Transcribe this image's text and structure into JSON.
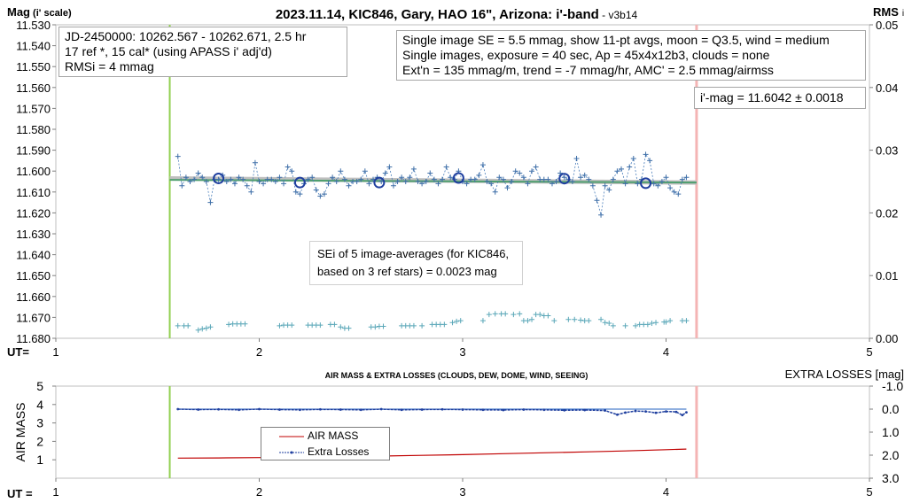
{
  "chart_data": [
    {
      "type": "scatter",
      "title_main": "2023.11.14, KIC846, Gary, HAO 16\", Arizona: i'-band",
      "title_version": " - v3b14",
      "ylabel_main": "Mag",
      "ylabel_sub": "(i' scale)",
      "y2label_main": "RMS",
      "y2label_sub": "i",
      "xlabel": "UT=",
      "xlim": [
        1,
        5
      ],
      "ylim": [
        11.68,
        11.53
      ],
      "y2lim": [
        0,
        0.05
      ],
      "y_ticks": [
        "11.530",
        "11.540",
        "11.550",
        "11.560",
        "11.570",
        "11.580",
        "11.590",
        "11.600",
        "11.610",
        "11.620",
        "11.630",
        "11.640",
        "11.650",
        "11.660",
        "11.670",
        "11.680"
      ],
      "y2_ticks": [
        "0.05",
        "0.04",
        "0.03",
        "0.02",
        "0.01",
        "0.00"
      ],
      "x_ticks": [
        "1",
        "2",
        "3",
        "4",
        "5"
      ],
      "vlines": {
        "start": 1.56,
        "end": 4.15
      },
      "info_box_left": [
        "JD-2450000: 10262.567 - 10262.671, 2.5  hr",
        "17 ref *, 15 cal* (using APASS i' adj'd)",
        "RMSi = 4 mmag"
      ],
      "info_box_right": [
        "Single image SE = 5.5 mmag, show 11-pt avgs, moon = Q3.5, wind = medium",
        "Single images, exposure = 40 sec, Ap = 45x4x12b3, clouds = none",
        "Ext'n = 135 mmag/m, trend = -7 mmag/hr, AMC' = 2.5 mmag/airmss"
      ],
      "mag_result": "i'-mag = 11.6042 ± 0.0018",
      "sei_note": [
        "SEi of 5 image-averages (for KIC846,",
        "based on 3 ref stars) = 0.0023 mag"
      ],
      "series": [
        {
          "name": "single images",
          "x": [
            1.6,
            1.62,
            1.64,
            1.66,
            1.68,
            1.7,
            1.72,
            1.74,
            1.76,
            1.78,
            1.8,
            1.82,
            1.84,
            1.86,
            1.88,
            1.9,
            1.92,
            1.94,
            1.96,
            1.98,
            2.0,
            2.02,
            2.04,
            2.06,
            2.08,
            2.1,
            2.12,
            2.14,
            2.16,
            2.18,
            2.2,
            2.22,
            2.24,
            2.26,
            2.28,
            2.3,
            2.32,
            2.34,
            2.36,
            2.38,
            2.4,
            2.42,
            2.44,
            2.46,
            2.48,
            2.5,
            2.52,
            2.54,
            2.56,
            2.58,
            2.6,
            2.62,
            2.64,
            2.66,
            2.68,
            2.7,
            2.72,
            2.74,
            2.76,
            2.78,
            2.8,
            2.82,
            2.84,
            2.86,
            2.88,
            2.9,
            2.92,
            2.94,
            2.96,
            2.98,
            3.0,
            3.02,
            3.04,
            3.06,
            3.08,
            3.1,
            3.12,
            3.14,
            3.16,
            3.18,
            3.2,
            3.22,
            3.24,
            3.26,
            3.28,
            3.3,
            3.32,
            3.34,
            3.36,
            3.38,
            3.4,
            3.42,
            3.44,
            3.46,
            3.48,
            3.5,
            3.52,
            3.54,
            3.56,
            3.58,
            3.6,
            3.62,
            3.64,
            3.66,
            3.68,
            3.7,
            3.72,
            3.74,
            3.76,
            3.78,
            3.8,
            3.82,
            3.84,
            3.86,
            3.88,
            3.9,
            3.92,
            3.94,
            3.96,
            3.98,
            4.0,
            4.02,
            4.04,
            4.06,
            4.08,
            4.1
          ],
          "values": [
            11.593,
            11.607,
            11.603,
            11.605,
            11.604,
            11.601,
            11.603,
            11.605,
            11.615,
            11.604,
            11.604,
            11.602,
            11.605,
            11.604,
            11.606,
            11.603,
            11.604,
            11.607,
            11.61,
            11.596,
            11.605,
            11.606,
            11.604,
            11.604,
            11.605,
            11.603,
            11.606,
            11.598,
            11.6,
            11.61,
            11.611,
            11.606,
            11.604,
            11.603,
            11.609,
            11.612,
            11.611,
            11.606,
            11.603,
            11.605,
            11.6,
            11.604,
            11.607,
            11.605,
            11.605,
            11.604,
            11.6,
            11.606,
            11.604,
            11.603,
            11.605,
            11.601,
            11.598,
            11.607,
            11.605,
            11.603,
            11.605,
            11.603,
            11.599,
            11.605,
            11.606,
            11.605,
            11.601,
            11.604,
            11.606,
            11.604,
            11.598,
            11.603,
            11.604,
            11.6,
            11.605,
            11.606,
            11.604,
            11.604,
            11.602,
            11.597,
            11.605,
            11.606,
            11.61,
            11.603,
            11.604,
            11.608,
            11.605,
            11.6,
            11.601,
            11.603,
            11.606,
            11.6,
            11.598,
            11.604,
            11.604,
            11.604,
            11.606,
            11.605,
            11.601,
            11.603,
            11.604,
            11.605,
            11.594,
            11.603,
            11.602,
            11.604,
            11.607,
            11.614,
            11.621,
            11.607,
            11.609,
            11.604,
            11.6,
            11.599,
            11.606,
            11.598,
            11.594,
            11.606,
            11.604,
            11.592,
            11.595,
            11.606,
            11.607,
            11.605,
            11.603,
            11.608,
            11.61,
            11.611,
            11.604,
            11.603
          ]
        },
        {
          "name": "11-pt averages",
          "x": [
            1.8,
            2.2,
            2.59,
            2.98,
            3.5,
            3.9
          ],
          "values": [
            11.6035,
            11.6055,
            11.6055,
            11.6033,
            11.6036,
            11.6058
          ]
        },
        {
          "name": "trend",
          "x": [
            1.56,
            4.15
          ],
          "values": [
            11.6035,
            11.6055
          ]
        },
        {
          "name": "fit",
          "x": [
            1.56,
            4.15
          ],
          "values": [
            11.6042,
            11.6055
          ]
        },
        {
          "name": "RMS",
          "axis": "y2",
          "x": [
            1.6,
            1.63,
            1.65,
            1.7,
            1.72,
            1.74,
            1.76,
            1.85,
            1.87,
            1.89,
            1.91,
            1.93,
            2.1,
            2.12,
            2.14,
            2.16,
            2.24,
            2.26,
            2.28,
            2.3,
            2.35,
            2.37,
            2.4,
            2.42,
            2.44,
            2.55,
            2.57,
            2.59,
            2.61,
            2.7,
            2.72,
            2.74,
            2.76,
            2.8,
            2.85,
            2.87,
            2.89,
            2.91,
            2.95,
            2.97,
            2.99,
            3.1,
            3.13,
            3.16,
            3.19,
            3.21,
            3.25,
            3.28,
            3.3,
            3.32,
            3.34,
            3.36,
            3.38,
            3.4,
            3.42,
            3.45,
            3.52,
            3.55,
            3.58,
            3.6,
            3.62,
            3.68,
            3.7,
            3.72,
            3.74,
            3.8,
            3.85,
            3.87,
            3.89,
            3.91,
            3.93,
            3.95,
            3.99,
            4.0,
            4.02,
            4.08,
            4.1
          ],
          "values": [
            0.002,
            0.002,
            0.002,
            0.0013,
            0.0015,
            0.0016,
            0.0018,
            0.0022,
            0.0023,
            0.0023,
            0.0023,
            0.0023,
            0.002,
            0.0021,
            0.0021,
            0.0021,
            0.0021,
            0.0021,
            0.0021,
            0.0021,
            0.0022,
            0.0022,
            0.0018,
            0.0016,
            0.0016,
            0.0018,
            0.0018,
            0.0019,
            0.0019,
            0.002,
            0.002,
            0.002,
            0.002,
            0.002,
            0.0022,
            0.0022,
            0.0022,
            0.0022,
            0.0025,
            0.0027,
            0.0028,
            0.0028,
            0.0038,
            0.0039,
            0.0039,
            0.0039,
            0.0038,
            0.0039,
            0.0028,
            0.0028,
            0.003,
            0.0038,
            0.0038,
            0.0036,
            0.0036,
            0.0028,
            0.003,
            0.003,
            0.0029,
            0.0028,
            0.0028,
            0.003,
            0.0025,
            0.0024,
            0.002,
            0.002,
            0.002,
            0.0022,
            0.0022,
            0.0022,
            0.0024,
            0.0025,
            0.0026,
            0.0026,
            0.0028,
            0.0028,
            0.0028
          ]
        }
      ]
    },
    {
      "type": "line",
      "title": "AIR MASS & EXTRA LOSSES (CLOUDS, DEW, DOME, WIND, SEEING)",
      "ylabel": "AIR MASS",
      "y2label": "EXTRA LOSSES [mag]",
      "xlabel": "UT =",
      "xlim": [
        1,
        5
      ],
      "ylim": [
        0,
        5
      ],
      "y2lim": [
        3.0,
        -1.0
      ],
      "x_ticks": [
        "1",
        "2",
        "3",
        "4",
        "5"
      ],
      "y_ticks": [
        "5",
        "4",
        "3",
        "2",
        "1"
      ],
      "y2_ticks": [
        "-1.0",
        "0.0",
        "1.0",
        "2.0",
        "3.0"
      ],
      "vlines": {
        "start": 1.56,
        "end": 4.15
      },
      "legend": [
        "AIR MASS",
        "Extra Losses"
      ],
      "series": [
        {
          "name": "AIR MASS",
          "x": [
            1.6,
            1.8,
            2.0,
            2.2,
            2.4,
            2.6,
            2.8,
            3.0,
            3.2,
            3.4,
            3.6,
            3.8,
            4.0,
            4.1
          ],
          "values": [
            1.09,
            1.1,
            1.12,
            1.14,
            1.17,
            1.2,
            1.24,
            1.28,
            1.33,
            1.38,
            1.43,
            1.48,
            1.55,
            1.58
          ]
        },
        {
          "name": "Extra Losses",
          "axis": "y2",
          "x": [
            1.6,
            1.7,
            1.8,
            1.9,
            2.0,
            2.1,
            2.2,
            2.3,
            2.4,
            2.5,
            2.6,
            2.7,
            2.8,
            2.9,
            3.0,
            3.1,
            3.2,
            3.3,
            3.4,
            3.5,
            3.6,
            3.7,
            3.76,
            3.8,
            3.85,
            3.9,
            3.95,
            4.0,
            4.05,
            4.08,
            4.1
          ],
          "values": [
            0.0,
            0.02,
            0.01,
            0.03,
            0.0,
            0.02,
            0.03,
            0.01,
            0.02,
            0.03,
            0.0,
            0.03,
            0.02,
            0.01,
            0.02,
            0.03,
            0.04,
            0.02,
            0.03,
            0.05,
            0.04,
            0.06,
            0.24,
            0.15,
            0.08,
            0.1,
            0.16,
            0.1,
            0.12,
            0.26,
            0.14
          ]
        },
        {
          "name": "zero level",
          "axis": "y2",
          "x": [
            1.6,
            4.1
          ],
          "values": [
            0.0,
            0.0
          ]
        }
      ]
    }
  ]
}
